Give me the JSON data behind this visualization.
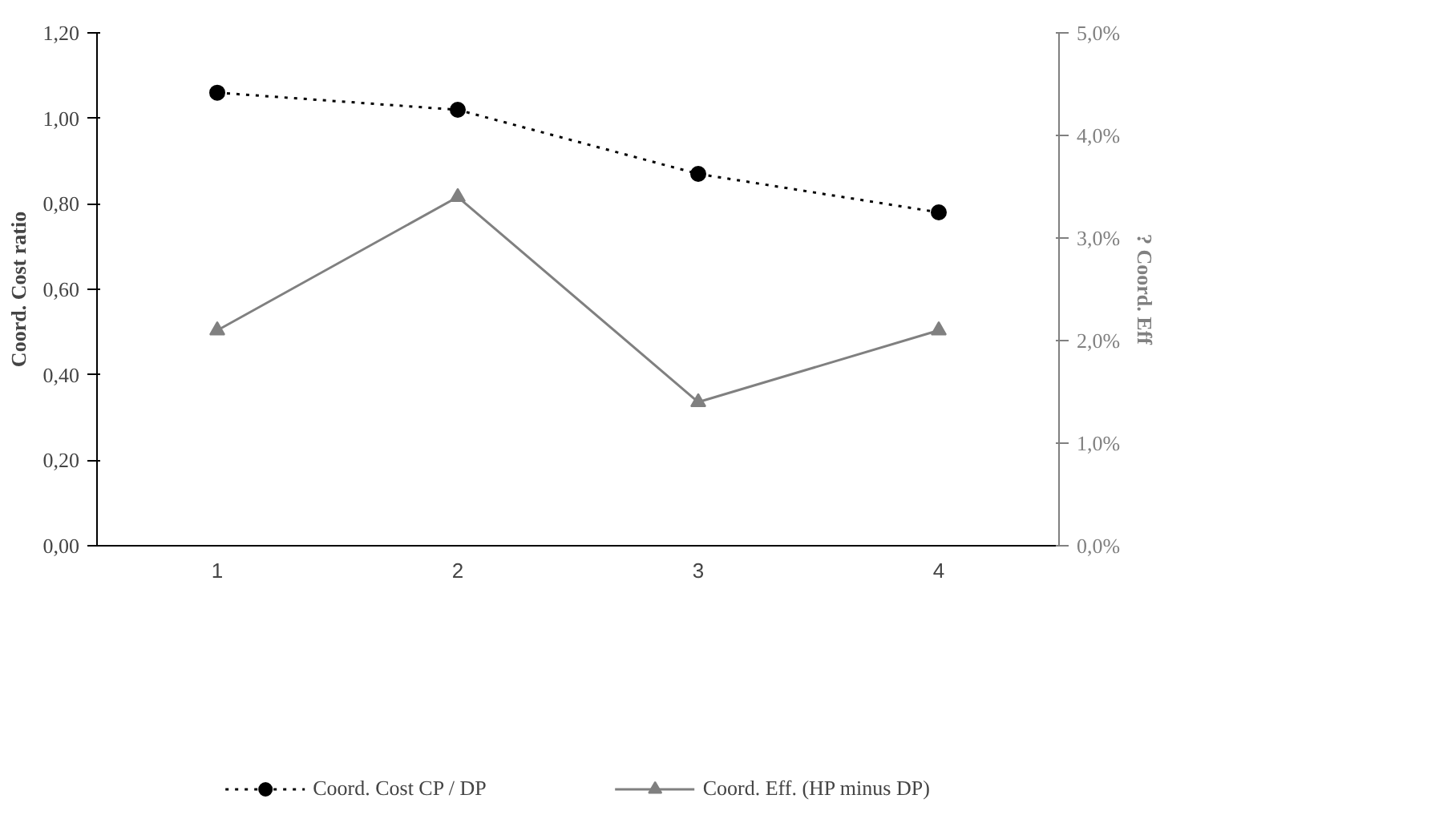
{
  "chart_data": {
    "type": "line",
    "categories": [
      "1",
      "2",
      "3",
      "4"
    ],
    "ylabel": "Coord. Cost ratio",
    "y2label": "? Coord. Eff",
    "ylim": [
      0,
      1.2
    ],
    "yticks": [
      {
        "value": 0,
        "label": "0,00"
      },
      {
        "value": 0.2,
        "label": "0,20"
      },
      {
        "value": 0.4,
        "label": "0,40"
      },
      {
        "value": 0.6,
        "label": "0,60"
      },
      {
        "value": 0.8,
        "label": "0,80"
      },
      {
        "value": 1.0,
        "label": "1,00"
      },
      {
        "value": 1.2,
        "label": "1,20"
      }
    ],
    "y2lim": [
      0,
      5
    ],
    "y2ticks": [
      {
        "value": 0,
        "label": "0,0%"
      },
      {
        "value": 1,
        "label": "1,0%"
      },
      {
        "value": 2,
        "label": "2,0%"
      },
      {
        "value": 3,
        "label": "3,0%"
      },
      {
        "value": 4,
        "label": "4,0%"
      },
      {
        "value": 5,
        "label": "5,0%"
      }
    ],
    "series": [
      {
        "name": "Coord. Cost CP / DP",
        "color": "#000000",
        "values": [
          1.06,
          1.02,
          0.87,
          0.78
        ],
        "marker": "circle",
        "line_style": "dotted"
      },
      {
        "name": "Coord. Eff. (HP minus DP)",
        "color": "#808080",
        "values": [
          2.1,
          3.4,
          1.4,
          2.1
        ],
        "marker": "triangle",
        "line_style": "solid",
        "axis": "y2"
      }
    ],
    "grid": false,
    "legend": "bottom"
  }
}
